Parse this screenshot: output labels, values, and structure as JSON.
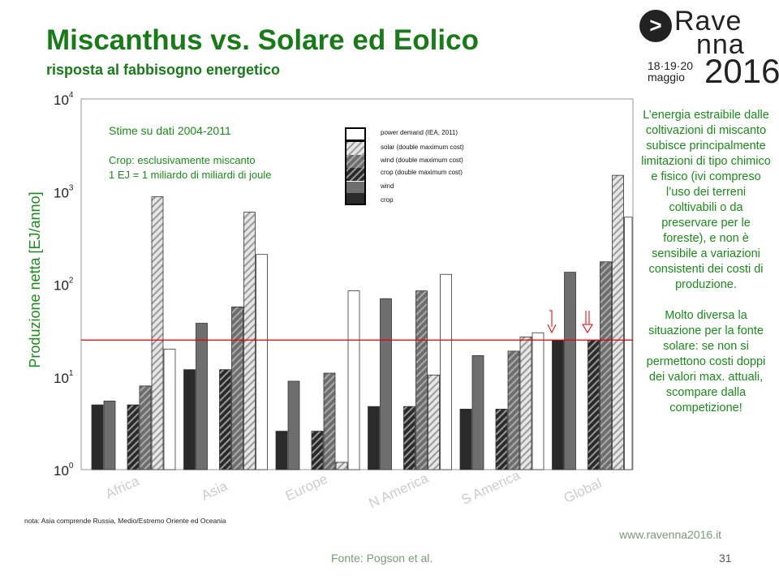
{
  "header": {
    "title": "Miscanthus vs. Solare ed Eolico",
    "subtitle": "risposta al fabbisogno energetico"
  },
  "logo": {
    "line1": "Rave",
    "line2": "nna",
    "dates": "18·19·20",
    "month": "maggio",
    "year": "2016",
    "arrow": ">"
  },
  "side_text": {
    "p1": "L’energia estraibile dalle coltivazioni di miscanto subisce principalmente limitazioni di tipo chimico e fisico (ivi compreso l’uso dei terreni coltivabili o da preservare per le foreste), e non è sensibile a variazioni consistenti dei costi di produzione.",
    "p2": "Molto diversa la situazione per la fonte solare: se non si permettono costi doppi dei valori max. attuali, scompare dalla competizione!"
  },
  "annotations": {
    "a1": "Stime su dati 2004-2011",
    "a2": "Crop: esclusivamente miscanto",
    "a3": "1 EJ = 1 miliardo di miliardi di joule"
  },
  "note": "nota: Asia comprende Russia, Medio/Estremo Oriente ed Oceania",
  "footer": {
    "url": "www.ravenna2016.it",
    "source": "Fonte: Pogson et al.",
    "page": "31"
  },
  "chart_data": {
    "type": "bar",
    "ylabel": "Produzione netta [EJ/anno]",
    "yscale": "log",
    "ylim": [
      1,
      10000
    ],
    "yticks": [
      {
        "base": "10",
        "exp": "0"
      },
      {
        "base": "10",
        "exp": "1"
      },
      {
        "base": "10",
        "exp": "2"
      },
      {
        "base": "10",
        "exp": "3"
      },
      {
        "base": "10",
        "exp": "4"
      }
    ],
    "categories": [
      "Africa",
      "Asia",
      "Europe",
      "N America",
      "S America",
      "Global"
    ],
    "series": [
      {
        "name": "crop",
        "color": "#2a2a2a",
        "pattern": "solid",
        "values": [
          5,
          12,
          2.6,
          4.8,
          4.5,
          25
        ]
      },
      {
        "name": "wind",
        "color": "#6e6e6e",
        "pattern": "solid",
        "values": [
          5.5,
          38,
          9,
          70,
          17,
          135
        ]
      },
      {
        "name": "crop (double maximum cost)",
        "color": "#2a2a2a",
        "pattern": "hatch",
        "values": [
          5,
          12,
          2.6,
          4.8,
          4.5,
          25
        ]
      },
      {
        "name": "wind (double maximum cost)",
        "color": "#707070",
        "pattern": "hatch",
        "values": [
          8,
          57,
          11,
          85,
          19,
          175
        ]
      },
      {
        "name": "solar (double maximum cost)",
        "color": "#d8d8d8",
        "pattern": "hatch",
        "values": [
          880,
          600,
          1.2,
          10.5,
          27,
          1500
        ]
      },
      {
        "name": "power demand (IEA, 2011)",
        "color": "#ffffff",
        "pattern": "solid",
        "values": [
          20,
          210,
          85,
          128,
          30,
          530
        ]
      }
    ],
    "legend_order": [
      "power demand (IEA, 2011)",
      "solar (double maximum cost)",
      "wind (double maximum cost)",
      "crop (double maximum cost)",
      "wind",
      "crop"
    ],
    "legend_position": "top-center",
    "reference_line": {
      "value": 25,
      "color": "#e00000"
    },
    "arrows": [
      "Global crop",
      "Global crop (double maximum cost)"
    ]
  }
}
